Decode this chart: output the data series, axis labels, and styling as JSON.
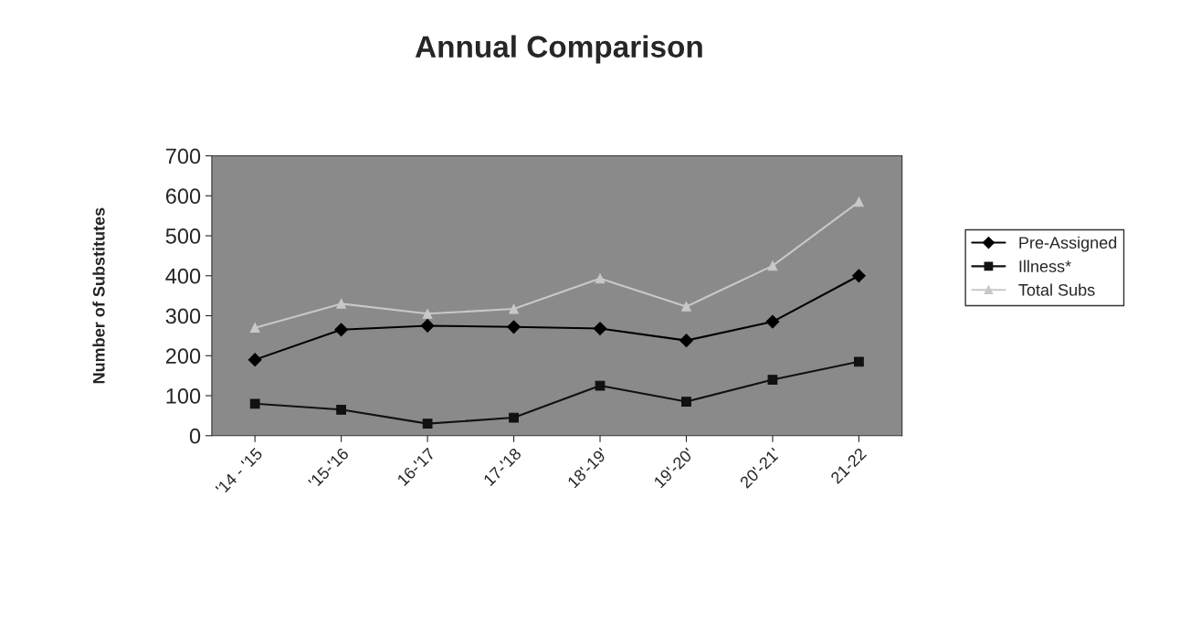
{
  "chart_data": {
    "type": "line",
    "title": "Annual Comparison",
    "ylabel": "Number of Substitutes",
    "categories": [
      "'14 - '15",
      "'15-'16",
      "16-'17",
      "17-'18",
      "18'-19'",
      "19'-20'",
      "20'-21'",
      "21-22"
    ],
    "series": [
      {
        "name": "Pre-Assigned",
        "color": "#000000",
        "marker": "diamond",
        "values": [
          190,
          265,
          275,
          272,
          268,
          238,
          285,
          400
        ]
      },
      {
        "name": "Illness*",
        "color": "#111111",
        "marker": "square",
        "values": [
          80,
          65,
          30,
          45,
          125,
          85,
          140,
          185
        ]
      },
      {
        "name": "Total Subs",
        "color": "#c8c8c8",
        "marker": "triangle",
        "values": [
          270,
          330,
          305,
          317,
          393,
          323,
          425,
          585
        ]
      }
    ],
    "ylim": [
      0,
      700
    ],
    "yticks": [
      0,
      100,
      200,
      300,
      400,
      500,
      600,
      700
    ],
    "grid": false,
    "legend": "right",
    "line_style": "solid"
  }
}
